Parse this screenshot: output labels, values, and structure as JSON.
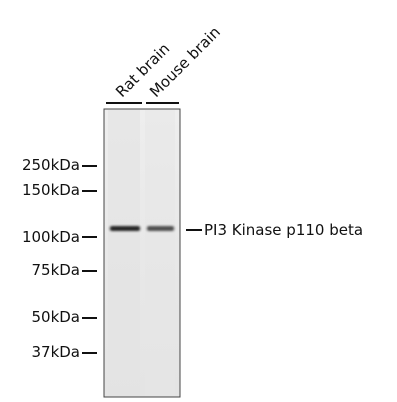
{
  "lanes": [
    {
      "label": "Rat brain",
      "band_intensity": 0.95
    },
    {
      "label": "Mouse brain",
      "band_intensity": 0.75
    }
  ],
  "markers": [
    {
      "label": "250kDa"
    },
    {
      "label": "150kDa"
    },
    {
      "label": "100kDa"
    },
    {
      "label": "75kDa"
    },
    {
      "label": "50kDa"
    },
    {
      "label": "37kDa"
    }
  ],
  "target": {
    "label": "PI3 Kinase p110 beta"
  },
  "colors": {
    "membrane": "#e9e9e9",
    "band": "#1a1a1a",
    "text": "#111111"
  }
}
